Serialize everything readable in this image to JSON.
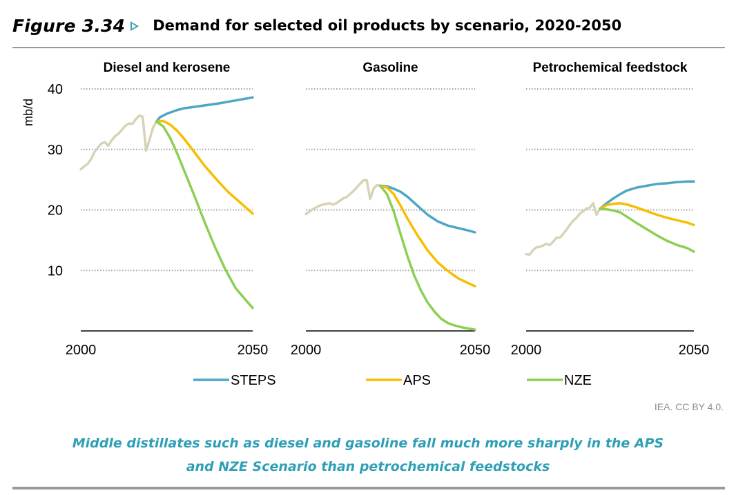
{
  "header": {
    "figure_number": "Figure 3.34",
    "title": "Demand for selected oil products by scenario, 2020-2050"
  },
  "credit": "IEA. CC BY 4.0.",
  "caption": {
    "line1": "Middle distillates such as diesel and gasoline fall much more sharply in the APS",
    "line2": "and NZE Scenario than petrochemical feedstocks"
  },
  "colors": {
    "history": "#d8d3b8",
    "STEPS": "#4ea6c6",
    "APS": "#f7be00",
    "NZE": "#8ccf52",
    "grid": "#9e9e9e",
    "axis": "#000000"
  },
  "chart_data": {
    "type": "line",
    "ylabel": "mb/d",
    "ylim": [
      0,
      40
    ],
    "yticks": [
      10,
      20,
      30,
      40
    ],
    "xlim": [
      2000,
      2050
    ],
    "xticks": [
      2000,
      2050
    ],
    "grid": "horizontal dotted",
    "legend": {
      "position": "bottom",
      "entries": [
        "STEPS",
        "APS",
        "NZE"
      ]
    },
    "panels": [
      {
        "title": "Diesel and kerosene",
        "history": {
          "x": [
            2000,
            2001,
            2002,
            2003,
            2004,
            2005,
            2006,
            2007,
            2008,
            2009,
            2010,
            2011,
            2012,
            2013,
            2014,
            2015,
            2016,
            2017,
            2018,
            2019,
            2020,
            2021,
            2022
          ],
          "y": [
            26.7,
            27.2,
            27.6,
            28.4,
            29.6,
            30.3,
            31.0,
            31.2,
            30.6,
            31.5,
            32.2,
            32.6,
            33.3,
            33.9,
            34.3,
            34.2,
            35.0,
            35.6,
            35.4,
            29.8,
            31.6,
            33.6,
            34.6
          ]
        },
        "series": [
          {
            "name": "STEPS",
            "x": [
              2022,
              2023,
              2025,
              2028,
              2030,
              2035,
              2040,
              2045,
              2050
            ],
            "y": [
              34.6,
              35.3,
              35.9,
              36.5,
              36.8,
              37.2,
              37.6,
              38.1,
              38.6
            ]
          },
          {
            "name": "APS",
            "x": [
              2022,
              2024,
              2026,
              2028,
              2030,
              2033,
              2036,
              2040,
              2043,
              2046,
              2050
            ],
            "y": [
              34.6,
              34.7,
              34.1,
              33.1,
              31.8,
              29.6,
              27.3,
              24.7,
              22.9,
              21.4,
              19.4
            ]
          },
          {
            "name": "NZE",
            "x": [
              2022,
              2024,
              2026,
              2028,
              2030,
              2033,
              2036,
              2039,
              2042,
              2045,
              2048,
              2050
            ],
            "y": [
              34.6,
              33.8,
              31.9,
              29.4,
              26.6,
              22.4,
              18.0,
              13.9,
              10.2,
              7.1,
              5.1,
              3.8
            ]
          }
        ]
      },
      {
        "title": "Gasoline",
        "history": {
          "x": [
            2000,
            2001,
            2002,
            2003,
            2004,
            2005,
            2006,
            2007,
            2008,
            2009,
            2010,
            2011,
            2012,
            2013,
            2014,
            2015,
            2016,
            2017,
            2018,
            2019,
            2020,
            2021,
            2022
          ],
          "y": [
            19.3,
            19.7,
            20.1,
            20.4,
            20.7,
            20.9,
            21.0,
            21.1,
            20.9,
            21.1,
            21.5,
            21.9,
            22.1,
            22.6,
            23.1,
            23.7,
            24.3,
            24.9,
            24.9,
            21.8,
            23.5,
            24.1,
            24.0
          ]
        },
        "series": [
          {
            "name": "STEPS",
            "x": [
              2022,
              2024,
              2026,
              2028,
              2030,
              2033,
              2036,
              2039,
              2042,
              2045,
              2048,
              2050
            ],
            "y": [
              24.0,
              23.9,
              23.5,
              23.0,
              22.2,
              20.7,
              19.2,
              18.1,
              17.4,
              17.0,
              16.6,
              16.3
            ]
          },
          {
            "name": "APS",
            "x": [
              2022,
              2024,
              2026,
              2028,
              2030,
              2033,
              2036,
              2039,
              2042,
              2045,
              2048,
              2050
            ],
            "y": [
              24.0,
              23.7,
              22.6,
              20.7,
              18.6,
              15.8,
              13.3,
              11.3,
              9.9,
              8.7,
              7.9,
              7.4
            ]
          },
          {
            "name": "NZE",
            "x": [
              2022,
              2024,
              2026,
              2028,
              2030,
              2032,
              2034,
              2036,
              2038,
              2040,
              2042,
              2044,
              2046,
              2048,
              2050
            ],
            "y": [
              24.0,
              22.6,
              19.7,
              16.0,
              12.4,
              9.2,
              6.7,
              4.7,
              3.2,
              2.0,
              1.3,
              0.9,
              0.6,
              0.4,
              0.2
            ]
          }
        ]
      },
      {
        "title": "Petrochemical feedstock",
        "history": {
          "x": [
            2000,
            2001,
            2002,
            2003,
            2004,
            2005,
            2006,
            2007,
            2008,
            2009,
            2010,
            2011,
            2012,
            2013,
            2014,
            2015,
            2016,
            2017,
            2018,
            2019,
            2020,
            2021,
            2022
          ],
          "y": [
            12.7,
            12.6,
            13.3,
            13.8,
            13.9,
            14.1,
            14.4,
            14.2,
            14.7,
            15.4,
            15.4,
            16.0,
            16.7,
            17.5,
            18.2,
            18.7,
            19.4,
            19.8,
            20.2,
            20.4,
            21.1,
            19.2,
            20.2
          ]
        },
        "series": [
          {
            "name": "STEPS",
            "x": [
              2022,
              2024,
              2026,
              2028,
              2030,
              2033,
              2036,
              2039,
              2042,
              2045,
              2048,
              2050
            ],
            "y": [
              20.2,
              21.1,
              21.9,
              22.6,
              23.2,
              23.7,
              24.0,
              24.3,
              24.4,
              24.6,
              24.7,
              24.7
            ]
          },
          {
            "name": "APS",
            "x": [
              2022,
              2024,
              2026,
              2028,
              2030,
              2033,
              2036,
              2039,
              2042,
              2045,
              2048,
              2050
            ],
            "y": [
              20.2,
              20.8,
              21.0,
              21.1,
              20.9,
              20.4,
              19.8,
              19.2,
              18.7,
              18.3,
              17.9,
              17.5
            ]
          },
          {
            "name": "NZE",
            "x": [
              2022,
              2024,
              2026,
              2028,
              2030,
              2033,
              2036,
              2039,
              2042,
              2045,
              2048,
              2050
            ],
            "y": [
              20.2,
              20.1,
              19.9,
              19.6,
              18.9,
              17.8,
              16.8,
              15.8,
              14.9,
              14.2,
              13.7,
              13.1
            ]
          }
        ]
      }
    ]
  }
}
